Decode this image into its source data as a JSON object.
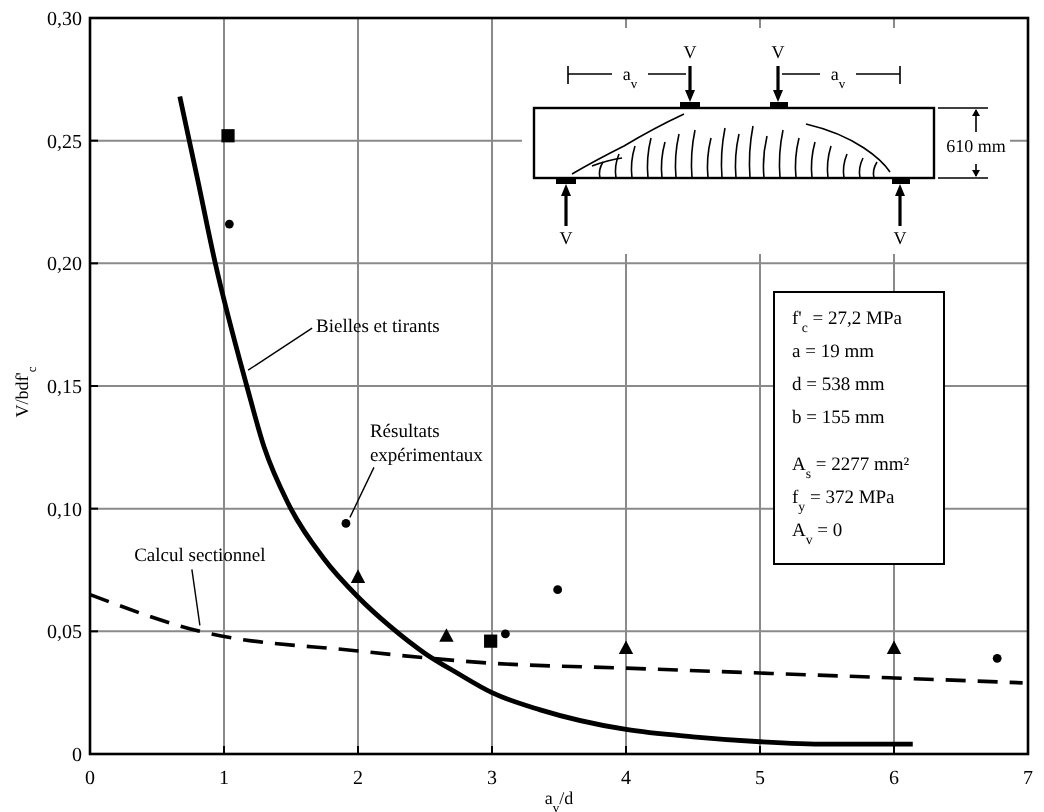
{
  "chart_data": {
    "type": "line",
    "xlabel": "a$_{v}$/d",
    "ylabel": "V/bdf'$_{c}$",
    "xlim": [
      0,
      7
    ],
    "xticks": [
      0,
      1,
      2,
      3,
      4,
      5,
      6,
      7
    ],
    "ylim": [
      0,
      0.3
    ],
    "yticks": [
      0,
      {
        "value": 0.05,
        "label": "0,05"
      },
      {
        "value": 0.1,
        "label": "0,10"
      },
      {
        "value": 0.15,
        "label": "0,15"
      },
      {
        "value": 0.2,
        "label": "0,20"
      },
      {
        "value": 0.25,
        "label": "0,25"
      },
      {
        "value": 0.3,
        "label": "0,30"
      }
    ],
    "grid": true,
    "series": [
      {
        "color": "#000000",
        "line_style": "solid",
        "x": [
          0.67,
          0.8,
          0.935,
          1.17,
          1.3,
          1.48,
          1.74,
          2.0,
          2.24,
          2.5,
          2.74,
          3.0,
          3.36,
          4.0,
          4.5,
          5.0,
          5.5,
          6.14
        ],
        "values": [
          0.268,
          0.235,
          0.2,
          0.15,
          0.125,
          0.102,
          0.08,
          0.064,
          0.052,
          0.041,
          0.033,
          0.025,
          0.018,
          0.01,
          0.007,
          0.005,
          0.004,
          0.004
        ]
      },
      {
        "color": "#000000",
        "line_style": "dashed",
        "x": [
          0,
          0.82,
          2,
          3,
          4,
          5,
          6,
          6.96
        ],
        "values": [
          0.065,
          0.05,
          0.042,
          0.037,
          0.035,
          0.033,
          0.031,
          0.029
        ]
      },
      {
        "type": "scatter",
        "color": "#000000",
        "marker": "square",
        "x": [
          1.03,
          2.99
        ],
        "values": [
          0.252,
          0.046
        ]
      },
      {
        "type": "scatter",
        "color": "#000000",
        "marker": "circle",
        "x": [
          1.04,
          1.91,
          3.1,
          3.49,
          6.77
        ],
        "values": [
          0.216,
          0.094,
          0.049,
          0.067,
          0.039
        ]
      },
      {
        "type": "scatter",
        "color": "#000000",
        "marker": "triangle",
        "x": [
          2.0,
          2.66,
          4.0,
          6.0
        ],
        "values": [
          0.072,
          0.048,
          0.043,
          0.043
        ]
      }
    ],
    "annotations": [
      {
        "text": "Bielles et tirants",
        "x": 1.15,
        "y": 0.154
      },
      {
        "text": "Résultats expérimentaux",
        "x": 1.91,
        "y": 0.094
      },
      {
        "text": "Calcul sectionnel",
        "x": 0.82,
        "y": 0.05
      },
      "f'$_{c}$ = 27,2 MPa",
      "a = 19 mm",
      "d = 538 mm",
      "b = 155 mm",
      "A$_{s}$ = 2277 mm²",
      "f$_{y}$ = 372 MPa",
      "A$_{v}$ = 0",
      "V",
      "V",
      "V",
      "V",
      "a$_{v}$",
      "a$_{v}$",
      "610 mm"
    ]
  }
}
